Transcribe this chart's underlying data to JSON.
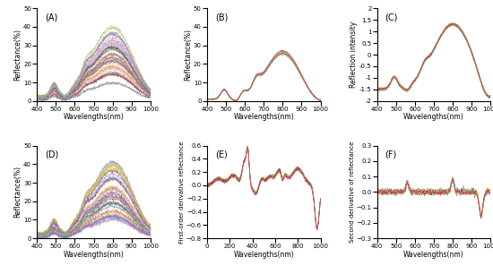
{
  "panels": [
    "A",
    "B",
    "C",
    "D",
    "E",
    "F"
  ],
  "n_curves_AD": 50,
  "n_curves_others": 20,
  "background_color": "#ffffff",
  "panel_label_fontsize": 7,
  "axis_label_fontsize": 5.5,
  "tick_fontsize": 5,
  "linewidth": 0.35
}
